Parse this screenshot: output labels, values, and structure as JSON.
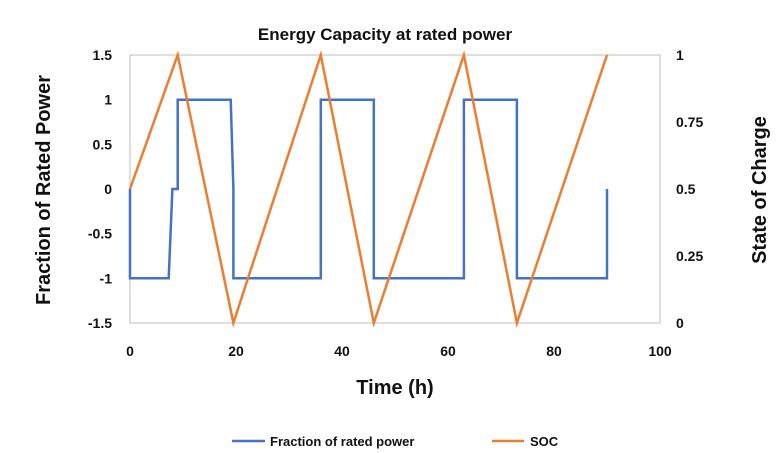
{
  "chart_data": {
    "type": "line",
    "title": "Energy Capacity at rated power",
    "xlabel": "Time (h)",
    "ylabel": "Fraction of Rated Power",
    "y2label": "State of Charge",
    "xlim": [
      0,
      100
    ],
    "ylim": [
      -1.5,
      1.5
    ],
    "y2lim": [
      0,
      1
    ],
    "x_ticks": [
      "0",
      "20",
      "40",
      "60",
      "80",
      "100"
    ],
    "y_ticks": [
      "1.5",
      "1",
      "0.5",
      "0",
      "-0.5",
      "-1",
      "-1.5"
    ],
    "y2_ticks": [
      "1",
      "0.75",
      "0.5",
      "0.25",
      "0"
    ],
    "grid": false,
    "legend_position": "bottom",
    "series": [
      {
        "name": "Fraction of rated power",
        "axis": "left",
        "color": "#4472C4",
        "x": [
          0,
          0,
          7.3,
          8,
          9,
          9,
          19,
          19.5,
          19.5,
          36,
          36,
          46,
          46,
          63,
          63,
          73,
          73,
          90,
          90
        ],
        "y": [
          0,
          -1,
          -1,
          0,
          0,
          1,
          1,
          0,
          -1,
          -1,
          1,
          1,
          -1,
          -1,
          1,
          1,
          -1,
          -1,
          0
        ]
      },
      {
        "name": "SOC",
        "axis": "right",
        "color": "#ED7D31",
        "x": [
          0,
          9,
          19.5,
          36,
          46,
          63,
          73,
          90
        ],
        "y": [
          0.5,
          1,
          0,
          1,
          0,
          1,
          0,
          1
        ]
      }
    ]
  }
}
